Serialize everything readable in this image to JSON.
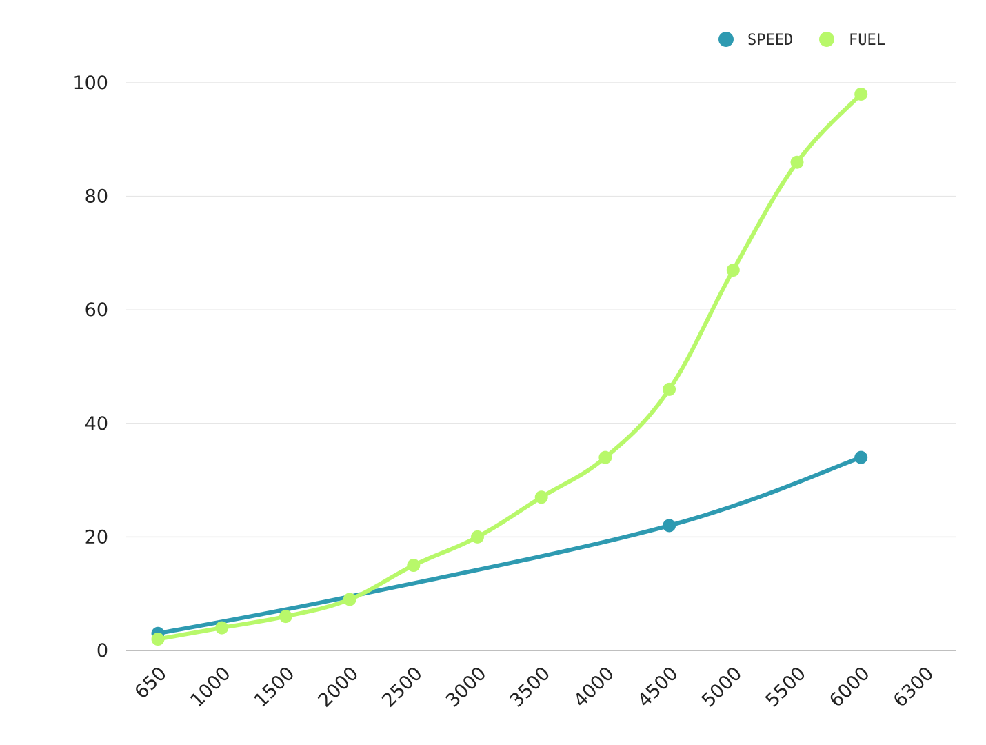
{
  "chart_data": {
    "type": "line",
    "x_ticks": [
      "650",
      "1000",
      "1500",
      "2000",
      "2500",
      "3000",
      "3500",
      "4000",
      "4500",
      "5000",
      "5500",
      "6000",
      "6300"
    ],
    "y_ticks": [
      "0",
      "20",
      "40",
      "60",
      "80",
      "100"
    ],
    "ylim": [
      0,
      100
    ],
    "grid": true,
    "legend_position": "top-right",
    "series": [
      {
        "name": "SPEED",
        "color": "#2e9ab1",
        "points": [
          {
            "x": "650",
            "y": 3
          },
          {
            "x": "2000",
            "y": 9.5
          },
          {
            "x": "4500",
            "y": 22
          },
          {
            "x": "6000",
            "y": 34
          }
        ],
        "markers": [
          "650",
          "4500",
          "6000"
        ]
      },
      {
        "name": "FUEL",
        "color": "#b8f86a",
        "points": [
          {
            "x": "650",
            "y": 2
          },
          {
            "x": "1000",
            "y": 4
          },
          {
            "x": "1500",
            "y": 6
          },
          {
            "x": "2000",
            "y": 9
          },
          {
            "x": "2500",
            "y": 15
          },
          {
            "x": "3000",
            "y": 20
          },
          {
            "x": "3500",
            "y": 27
          },
          {
            "x": "4000",
            "y": 34
          },
          {
            "x": "4500",
            "y": 46
          },
          {
            "x": "5000",
            "y": 67
          },
          {
            "x": "5500",
            "y": 86
          },
          {
            "x": "6000",
            "y": 98
          }
        ],
        "markers": [
          "650",
          "1000",
          "1500",
          "2000",
          "2500",
          "3000",
          "3500",
          "4000",
          "4500",
          "5000",
          "5500",
          "6000"
        ]
      }
    ],
    "colors": {
      "grid": "#e6e6e6",
      "axis": "#bfbfbf"
    }
  }
}
